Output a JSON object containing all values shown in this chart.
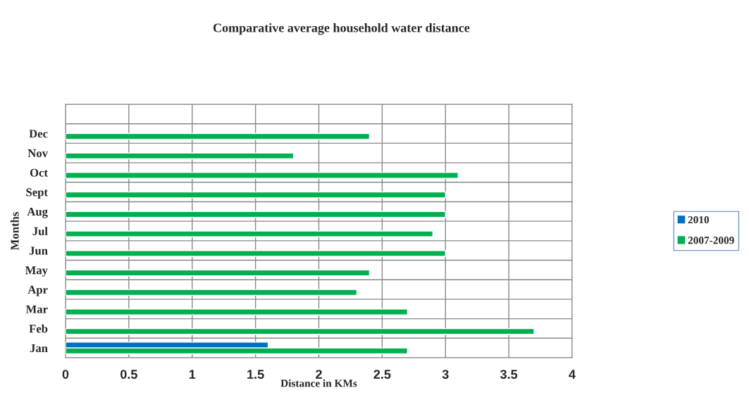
{
  "chart_data": {
    "type": "bar",
    "orientation": "horizontal",
    "title": "Comparative average household water distance",
    "xlabel": "Distance in KMs",
    "ylabel": "Months",
    "categories": [
      "Dec",
      "Nov",
      "Oct",
      "Sept",
      "Aug",
      "Jul",
      "Jun",
      "May",
      "Apr",
      "Mar",
      "Feb",
      "Jan"
    ],
    "series": [
      {
        "name": "2010",
        "color": "#0070c0",
        "values": [
          null,
          null,
          null,
          null,
          null,
          null,
          null,
          null,
          null,
          null,
          null,
          1.6
        ]
      },
      {
        "name": "2007-2009",
        "color": "#00b050",
        "values": [
          2.4,
          1.8,
          3.1,
          3.0,
          3.0,
          2.9,
          3.0,
          2.4,
          2.3,
          2.7,
          3.7,
          2.7
        ]
      }
    ],
    "xlim": [
      0,
      4
    ],
    "xticks": [
      0,
      0.5,
      1,
      1.5,
      2,
      2.5,
      3,
      3.5,
      4
    ],
    "grid": true,
    "legend": "right"
  }
}
